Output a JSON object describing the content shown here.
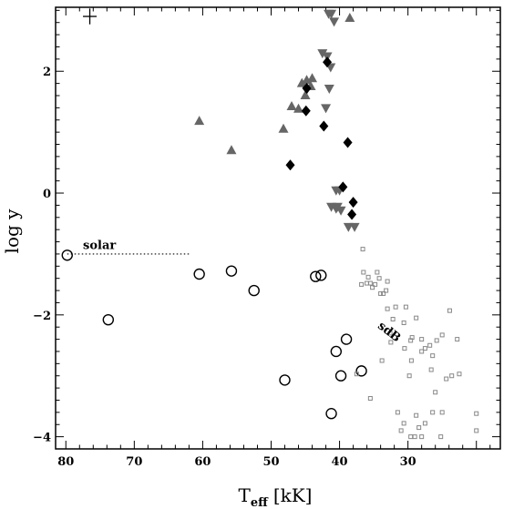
{
  "chart_data": {
    "type": "scatter",
    "xlabel": "T",
    "xlabel_sub": "eff",
    "xlabel_unit": "[kK]",
    "ylabel": "log y",
    "xlim": [
      81.5,
      16.5
    ],
    "ylim": [
      -4.2,
      3.05
    ],
    "x_ticks": [
      80,
      70,
      60,
      50,
      40,
      30
    ],
    "y_ticks": [
      -4,
      -2,
      0,
      2
    ],
    "y_tick_labels": [
      "−4",
      "−2",
      "0",
      "2"
    ],
    "grid": false,
    "annotations": [
      {
        "text": "solar",
        "x": 77.5,
        "y": -0.92
      },
      {
        "text": "sdB",
        "x": 34.5,
        "y": -2.2,
        "rotate": 38
      }
    ],
    "solar_line": {
      "x_start": 79.8,
      "x_end": 62.0,
      "y": -1.0
    },
    "error_bar": {
      "x": 76.5,
      "y": 2.9,
      "dx": 1.0,
      "dy": 0.13
    },
    "series": [
      {
        "marker": "triangle-up",
        "color": "#666666",
        "points": [
          [
            60.5,
            1.18
          ],
          [
            55.8,
            0.7
          ],
          [
            48.2,
            1.05
          ],
          [
            47.0,
            1.42
          ],
          [
            46.0,
            1.38
          ],
          [
            45.5,
            1.8
          ],
          [
            45.0,
            1.6
          ],
          [
            44.8,
            1.85
          ],
          [
            44.2,
            1.75
          ],
          [
            44.0,
            1.88
          ],
          [
            38.5,
            2.87
          ]
        ]
      },
      {
        "marker": "triangle-down",
        "color": "#666666",
        "points": [
          [
            42.5,
            2.3
          ],
          [
            41.8,
            2.25
          ],
          [
            41.6,
            2.95
          ],
          [
            41.2,
            2.95
          ],
          [
            41.3,
            2.07
          ],
          [
            41.5,
            1.72
          ],
          [
            42.0,
            1.4
          ],
          [
            44.8,
            1.7
          ],
          [
            40.8,
            2.82
          ],
          [
            40.5,
            0.05
          ],
          [
            40.0,
            0.05
          ],
          [
            41.2,
            -0.22
          ],
          [
            40.5,
            -0.25
          ],
          [
            40.3,
            -0.22
          ],
          [
            39.8,
            -0.28
          ],
          [
            38.7,
            -0.55
          ],
          [
            37.8,
            -0.55
          ]
        ]
      },
      {
        "marker": "diamond",
        "color": "#000000",
        "points": [
          [
            41.8,
            2.15
          ],
          [
            44.8,
            1.72
          ],
          [
            44.9,
            1.35
          ],
          [
            42.3,
            1.1
          ],
          [
            38.8,
            0.83
          ],
          [
            47.2,
            0.46
          ],
          [
            39.5,
            0.1
          ],
          [
            38.0,
            -0.15
          ],
          [
            38.2,
            -0.35
          ]
        ]
      },
      {
        "marker": "circle-open",
        "color": "#000000",
        "points": [
          [
            79.8,
            -1.02
          ],
          [
            73.8,
            -2.08
          ],
          [
            60.5,
            -1.33
          ],
          [
            55.8,
            -1.28
          ],
          [
            52.5,
            -1.6
          ],
          [
            43.5,
            -1.37
          ],
          [
            42.7,
            -1.35
          ],
          [
            40.5,
            -2.6
          ],
          [
            39.0,
            -2.4
          ],
          [
            39.8,
            -3.0
          ],
          [
            36.8,
            -2.92
          ],
          [
            48.0,
            -3.07
          ],
          [
            41.2,
            -3.62
          ]
        ]
      },
      {
        "marker": "square-small",
        "color": "#888888",
        "points": [
          [
            36.5,
            -1.3
          ],
          [
            35.8,
            -1.38
          ],
          [
            36.0,
            -1.48
          ],
          [
            35.5,
            -1.48
          ],
          [
            34.8,
            -1.5
          ],
          [
            34.5,
            -1.3
          ],
          [
            34.2,
            -1.4
          ],
          [
            34.0,
            -1.65
          ],
          [
            33.6,
            -1.65
          ],
          [
            33.2,
            -1.6
          ],
          [
            36.8,
            -1.5
          ],
          [
            35.2,
            -1.55
          ],
          [
            33.0,
            -1.9
          ],
          [
            32.2,
            -2.07
          ],
          [
            31.8,
            -1.87
          ],
          [
            30.6,
            -2.13
          ],
          [
            30.3,
            -1.87
          ],
          [
            29.6,
            -2.42
          ],
          [
            29.4,
            -2.37
          ],
          [
            28.8,
            -2.05
          ],
          [
            28.0,
            -2.4
          ],
          [
            27.5,
            -2.55
          ],
          [
            26.8,
            -2.5
          ],
          [
            26.4,
            -2.67
          ],
          [
            25.8,
            -2.42
          ],
          [
            25.0,
            -2.33
          ],
          [
            23.9,
            -1.93
          ],
          [
            22.8,
            -2.4
          ],
          [
            32.5,
            -2.45
          ],
          [
            32.6,
            -2.3
          ],
          [
            33.8,
            -2.75
          ],
          [
            30.5,
            -2.55
          ],
          [
            29.5,
            -2.75
          ],
          [
            29.8,
            -3.0
          ],
          [
            28.0,
            -2.6
          ],
          [
            26.6,
            -2.9
          ],
          [
            26.0,
            -3.27
          ],
          [
            24.4,
            -3.05
          ],
          [
            23.6,
            -3.0
          ],
          [
            22.5,
            -2.97
          ],
          [
            20.0,
            -3.62
          ],
          [
            20.0,
            -3.9
          ],
          [
            31.5,
            -3.6
          ],
          [
            31.0,
            -3.9
          ],
          [
            30.6,
            -3.78
          ],
          [
            29.6,
            -4.0
          ],
          [
            29.0,
            -4.0
          ],
          [
            28.8,
            -3.65
          ],
          [
            28.4,
            -3.85
          ],
          [
            28.0,
            -4.0
          ],
          [
            27.5,
            -3.78
          ],
          [
            26.4,
            -3.6
          ],
          [
            25.2,
            -4.0
          ],
          [
            25.0,
            -3.6
          ],
          [
            37.5,
            -2.97
          ],
          [
            35.5,
            -3.37
          ],
          [
            36.6,
            -0.92
          ],
          [
            33.0,
            -1.45
          ]
        ]
      }
    ]
  }
}
